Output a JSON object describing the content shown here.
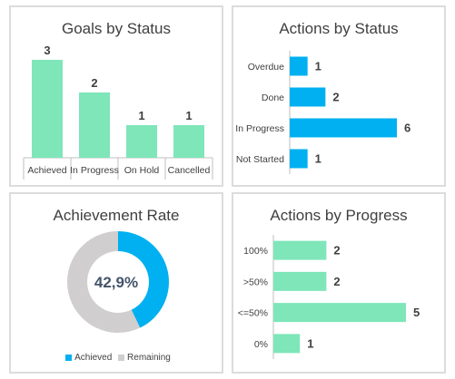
{
  "colors": {
    "green": "#7ee6b9",
    "blue": "#00b0f0",
    "grey": "#d0cece",
    "text": "#404040",
    "axis": "#bfbfbf"
  },
  "chart_data": [
    {
      "type": "bar",
      "orientation": "vertical",
      "title": "Goals by Status",
      "categories": [
        "Achieved",
        "In Progress",
        "On Hold",
        "Cancelled"
      ],
      "values": [
        3,
        2,
        1,
        1
      ],
      "ylim": [
        0,
        3.5
      ],
      "color": "#7ee6b9",
      "grid": false
    },
    {
      "type": "bar",
      "orientation": "horizontal",
      "title": "Actions by Status",
      "categories": [
        "Overdue",
        "Done",
        "In Progress",
        "Not Started"
      ],
      "values": [
        1,
        2,
        6,
        1
      ],
      "xlim": [
        0,
        6
      ],
      "color": "#00b0f0",
      "grid": false
    },
    {
      "type": "pie",
      "variant": "donut",
      "title": "Achievement Rate",
      "center_label": "42,9%",
      "slices": [
        {
          "name": "Achieved",
          "value": 42.9,
          "color": "#00b0f0"
        },
        {
          "name": "Remaining",
          "value": 57.1,
          "color": "#d0cece"
        }
      ],
      "legend": {
        "position": "bottom",
        "items": [
          "Achieved",
          "Remaining"
        ]
      }
    },
    {
      "type": "bar",
      "orientation": "horizontal",
      "title": "Actions by Progress",
      "categories": [
        "100%",
        ">50%",
        "<=50%",
        "0%"
      ],
      "values": [
        2,
        2,
        5,
        1
      ],
      "xlim": [
        0,
        5
      ],
      "color": "#7ee6b9",
      "grid": false
    }
  ]
}
